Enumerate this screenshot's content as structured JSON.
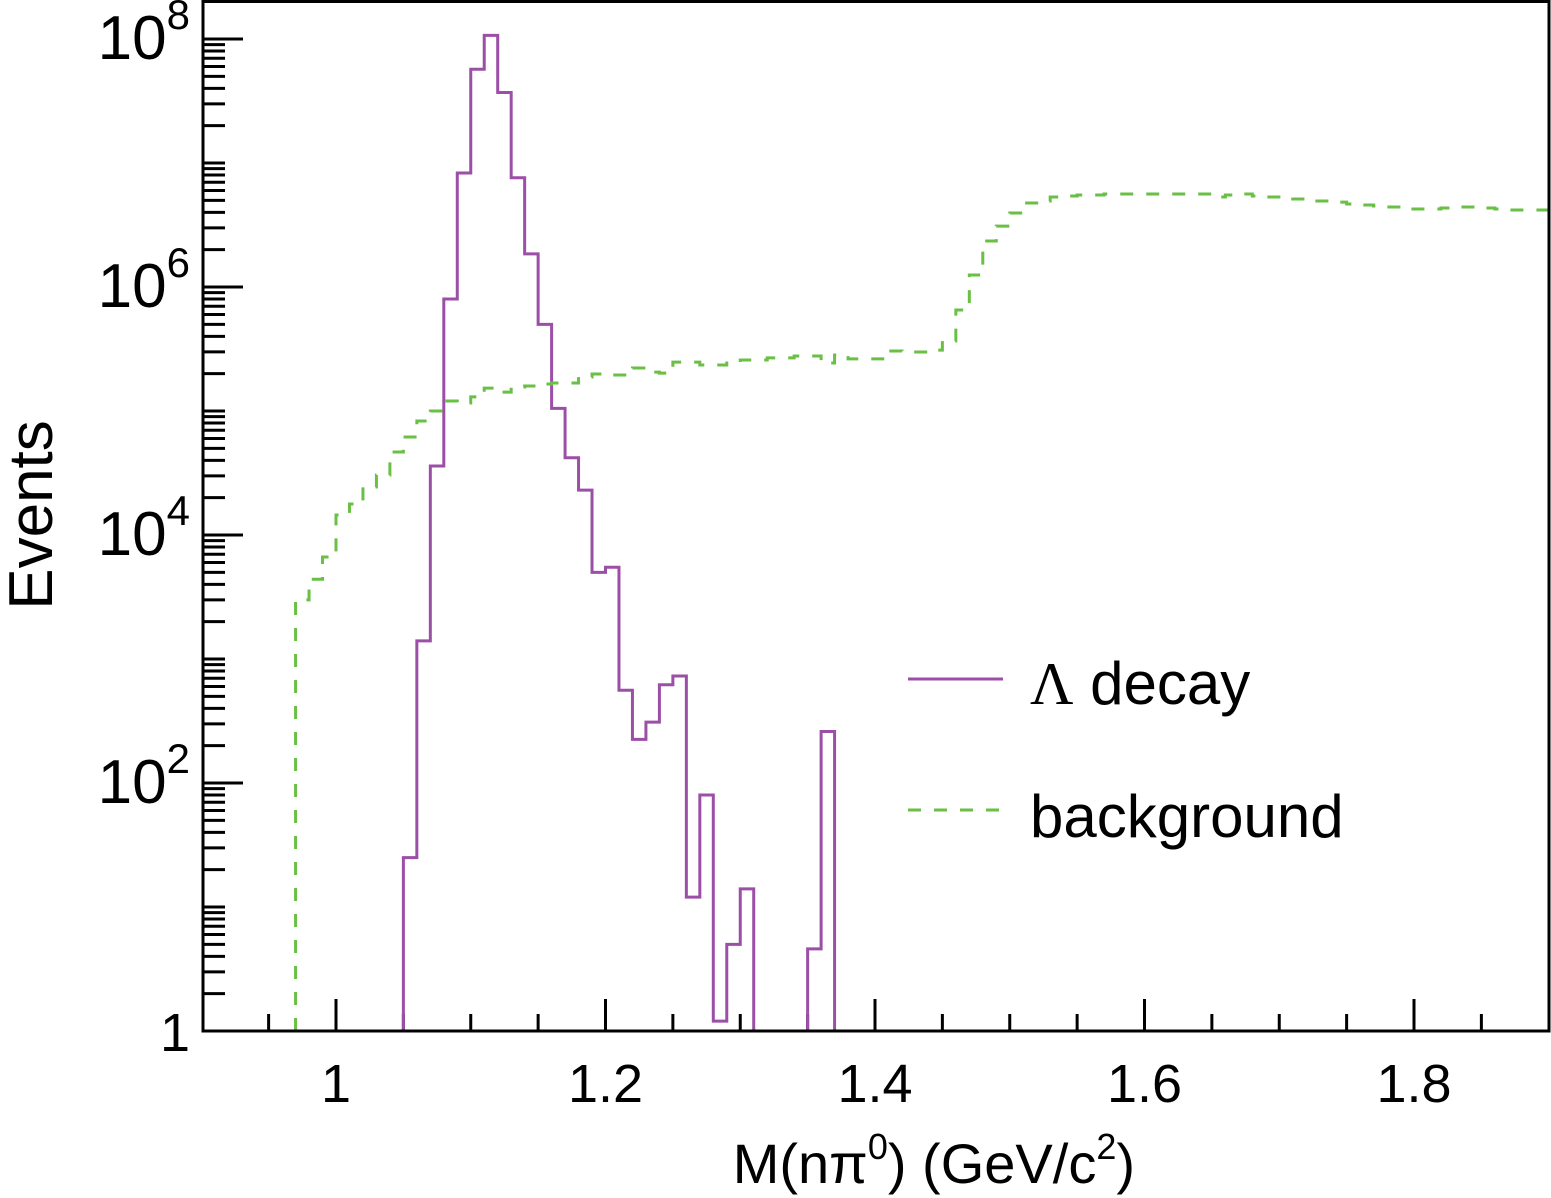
{
  "chart_data": {
    "type": "histogram",
    "xlabel": "M(nπ⁰) (GeV/c²)",
    "xlabel_parts": {
      "pre": "M(nπ",
      "sup1": "0",
      "mid": ") (GeV/c",
      "sup2": "2",
      "post": ")"
    },
    "ylabel": "Events",
    "xlim": [
      0.9,
      1.9
    ],
    "ylim": [
      1,
      100000000
    ],
    "yscale": "log",
    "grid": false,
    "legend_position": "right-middle",
    "xticks": [
      {
        "value": 1.0,
        "label": "1"
      },
      {
        "value": 1.2,
        "label": "1.2"
      },
      {
        "value": 1.4,
        "label": "1.4"
      },
      {
        "value": 1.6,
        "label": "1.6"
      },
      {
        "value": 1.8,
        "label": "1.8"
      }
    ],
    "yticks": [
      {
        "value": 1,
        "base": "1",
        "exp": ""
      },
      {
        "value": 100,
        "base": "10",
        "exp": "2"
      },
      {
        "value": 10000,
        "base": "10",
        "exp": "4"
      },
      {
        "value": 1000000,
        "base": "10",
        "exp": "6"
      },
      {
        "value": 100000000,
        "base": "10",
        "exp": "8"
      }
    ],
    "bin_width": 0.01,
    "series": [
      {
        "name": "Λ decay",
        "name_parts": {
          "symbol": "Λ",
          "text": " decay"
        },
        "color": "#9b4fa6",
        "style": "solid",
        "x_start": 1.05,
        "values": [
          25,
          1400,
          36000,
          800000,
          8300000,
          57000000,
          107000000,
          37000000,
          7600000,
          1850000,
          500000,
          105000,
          42000,
          23000,
          5000,
          5500,
          560,
          225,
          310,
          620,
          730,
          12,
          80,
          1.2,
          5,
          14,
          0,
          0,
          0,
          0,
          4.6,
          260
        ]
      },
      {
        "name": "background",
        "color": "#6abf45",
        "style": "dashed",
        "x_start": 0.97,
        "values": [
          3000,
          4400,
          6650,
          14500,
          17800,
          24400,
          30500,
          46700,
          61700,
          83000,
          100000,
          120500,
          116000,
          130000,
          153000,
          142000,
          156000,
          159000,
          165000,
          168000,
          168000,
          188000,
          199000,
          195000,
          195000,
          222000,
          206000,
          202000,
          248000,
          248000,
          235000,
          235000,
          244000,
          258000,
          258000,
          268000,
          268000,
          278000,
          278000,
          244000,
          283000,
          263000,
          263000,
          263000,
          305000,
          299000,
          299000,
          310000,
          367000,
          653000,
          1250000,
          2350000,
          3100000,
          3950000,
          4760000,
          4940000,
          5320000,
          5420000,
          5520000,
          5520000,
          5620000,
          5620000,
          5620000,
          5620000,
          5620000,
          5620000,
          5620000,
          5620000,
          5320000,
          5520000,
          5620000,
          5420000,
          5320000,
          5320000,
          5130000,
          4940000,
          4940000,
          4840000,
          4670000,
          4580000,
          4500000,
          4420000,
          4260000,
          4260000,
          4260000,
          4340000,
          4420000,
          4420000,
          4340000,
          4260000,
          4180000,
          4180000,
          4180000
        ]
      }
    ]
  }
}
